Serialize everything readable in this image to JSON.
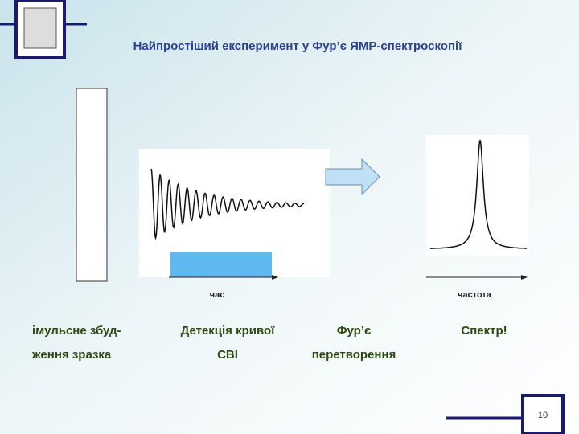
{
  "header": {
    "title": "Найпростіший експеримент у Фур’є ЯМР-спектроскопії"
  },
  "axes": {
    "time": "час",
    "frequency": "частота"
  },
  "steps": [
    {
      "lines": [
        "імульсне збуд-",
        "ження зразка"
      ]
    },
    {
      "lines": [
        "Детекція кривої",
        "СВІ"
      ]
    },
    {
      "lines": [
        "Фур’є",
        "перетворення"
      ]
    },
    {
      "lines": [
        "Спектр!"
      ]
    }
  ],
  "page_number": "10"
}
